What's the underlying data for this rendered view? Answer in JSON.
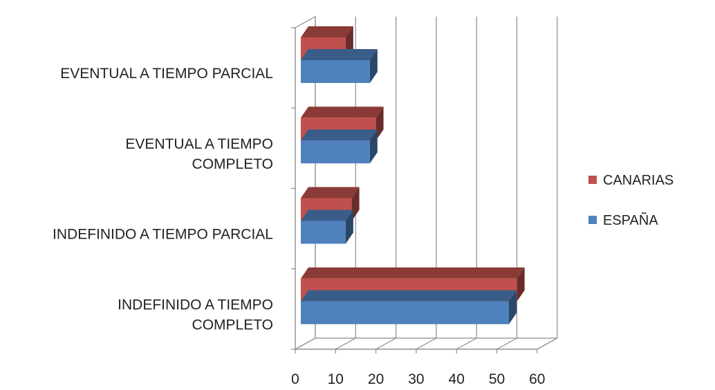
{
  "chart_data": {
    "type": "bar",
    "orientation": "horizontal",
    "three_d": true,
    "title": "",
    "xlabel": "",
    "ylabel": "",
    "categories": [
      [
        "INDEFINIDO A TIEMPO",
        "COMPLETO"
      ],
      [
        "INDEFINIDO A TIEMPO PARCIAL"
      ],
      [
        "EVENTUAL A TIEMPO",
        "COMPLETO"
      ],
      [
        "EVENTUAL A TIEMPO PARCIAL"
      ]
    ],
    "series": [
      {
        "name": "ESPAÑA",
        "color": "#4F81BD",
        "values": [
          53,
          12.5,
          18.5,
          18.5
        ]
      },
      {
        "name": "CANARIAS",
        "color": "#C0504D",
        "values": [
          55,
          14,
          20,
          12.5
        ]
      }
    ],
    "xlim": [
      0,
      60
    ],
    "ticks": [
      0,
      10,
      20,
      30,
      40,
      50,
      60
    ],
    "grid": true,
    "legend_position": "right"
  }
}
